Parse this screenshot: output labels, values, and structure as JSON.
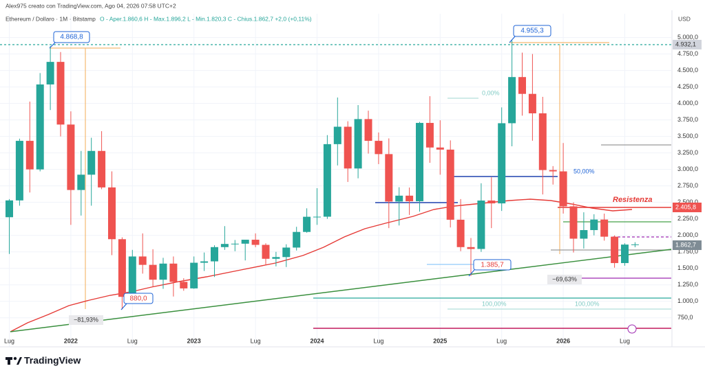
{
  "header": {
    "credit": "Alex975 creato con TradingView.com, Ago 04, 2026 07:58 UTC+2",
    "symbol": "Ethereum / Dollaro · 1M · Bitstamp",
    "ohlc": "O - Aper.1.860,6  H - Max.1.896,2  L - Min.1.820,3  C - Chius.1.862,7  +2,0 (+0,11%)",
    "currency": "USD"
  },
  "annotations": [
    "4.868,8",
    "4.955,3",
    "880,0",
    "1.385,7",
    "−81,93%",
    "−69,63%",
    "Resistenza",
    "50,00%",
    "0,00%",
    "100,00%",
    "100,00%"
  ],
  "price_labels": [
    "4.932,1",
    "2.405,8",
    "1.862,7"
  ],
  "brand": "TradingView",
  "chart_data": {
    "type": "candlestick",
    "up_color": "#26a69a",
    "down_color": "#ef5350",
    "grid": true,
    "categories": [
      "Lug",
      null,
      null,
      null,
      null,
      null,
      "2022",
      null,
      null,
      null,
      null,
      null,
      "Lug",
      null,
      null,
      null,
      null,
      null,
      "2023",
      null,
      null,
      null,
      null,
      null,
      "Lug",
      null,
      null,
      null,
      null,
      null,
      "2024",
      null,
      null,
      null,
      null,
      null,
      "Lug",
      null,
      null,
      null,
      null,
      null,
      "2025",
      null,
      null,
      null,
      null,
      null,
      "Lug",
      null,
      null,
      null,
      null,
      null,
      "2026",
      null,
      null,
      null,
      null,
      null,
      "Lug",
      null
    ],
    "open": [
      2275,
      2530,
      3433,
      3000,
      4288,
      4630,
      3680,
      2688,
      2920,
      3280,
      2727,
      1942,
      1068,
      1680,
      1553,
      1328,
      1572,
      1295,
      1196,
      1585,
      1606,
      1822,
      1870,
      1874,
      1934,
      1856,
      1645,
      1671,
      1815,
      2052,
      2282,
      2283,
      3383,
      3647,
      3014,
      3763,
      3433,
      3232,
      2513,
      2602,
      2517,
      3705,
      3332,
      3300,
      2237,
      1822,
      1794,
      2528,
      2485,
      3700,
      4400,
      4145,
      3850,
      2990,
      2970,
      2440,
      1950,
      2080,
      2240,
      1980,
      1580,
      1860.6
    ],
    "high": [
      2550,
      3466,
      4028,
      4460,
      4868.8,
      4780,
      3880,
      3280,
      3480,
      3580,
      2970,
      1970,
      1780,
      2030,
      1790,
      1660,
      1680,
      1350,
      1680,
      1740,
      1850,
      2140,
      1930,
      1930,
      2030,
      1880,
      1750,
      1865,
      2130,
      2410,
      2715,
      3520,
      4090,
      3730,
      3975,
      3890,
      3560,
      3470,
      2730,
      2725,
      3720,
      4110,
      3745,
      3440,
      2550,
      1960,
      2790,
      2880,
      3940,
      4955.3,
      4770,
      4750,
      4100,
      3050,
      3400,
      2500,
      2350,
      2320,
      2330,
      2000,
      1880,
      1896.2
    ],
    "low": [
      1718,
      2450,
      2650,
      2970,
      3900,
      3500,
      2160,
      2300,
      2450,
      2700,
      1700,
      880,
      1000,
      1420,
      1220,
      1190,
      1073,
      1160,
      1190,
      1460,
      1370,
      1780,
      1760,
      1620,
      1820,
      1550,
      1530,
      1520,
      1770,
      2040,
      2160,
      2250,
      3060,
      2810,
      2865,
      3240,
      3080,
      2110,
      2150,
      2310,
      2360,
      3100,
      2920,
      2120,
      1760,
      1385.7,
      1750,
      2110,
      2370,
      3350,
      3815,
      3435,
      2620,
      2770,
      2330,
      1740,
      1800,
      2000,
      1920,
      1510,
      1540,
      1820.3
    ],
    "close": [
      2530,
      3433,
      3000,
      4288,
      4630,
      3680,
      2688,
      2920,
      3280,
      2727,
      1942,
      1068,
      1680,
      1553,
      1328,
      1572,
      1295,
      1196,
      1585,
      1606,
      1822,
      1870,
      1874,
      1934,
      1856,
      1645,
      1671,
      1815,
      2052,
      2282,
      2283,
      3383,
      3647,
      3014,
      3763,
      3433,
      3232,
      2513,
      2602,
      2517,
      3705,
      3332,
      3300,
      2237,
      1822,
      1794,
      2528,
      2485,
      3700,
      4400,
      4145,
      3850,
      2990,
      2970,
      2440,
      1950,
      2080,
      2240,
      1980,
      1580,
      1860.6,
      1862.7
    ],
    "ylim": [
      310,
      5360
    ],
    "yticks": [
      {
        "value": 750,
        "label": "750,0"
      },
      {
        "value": 1000,
        "label": "1.000,0"
      },
      {
        "value": 1250,
        "label": "1.250,0"
      },
      {
        "value": 1500,
        "label": "1.500,0"
      },
      {
        "value": 1750,
        "label": "1.750,0"
      },
      {
        "value": 2000,
        "label": "2.000,0"
      },
      {
        "value": 2250,
        "label": "2.250,0"
      },
      {
        "value": 2500,
        "label": "2.500,0"
      },
      {
        "value": 2750,
        "label": "2.750,0"
      },
      {
        "value": 3000,
        "label": "3.000,0"
      },
      {
        "value": 3250,
        "label": "3.250,0"
      },
      {
        "value": 3500,
        "label": "3.500,0"
      },
      {
        "value": 3750,
        "label": "3.750,0"
      },
      {
        "value": 4000,
        "label": "4.000,0"
      },
      {
        "value": 4250,
        "label": "4.250,0"
      },
      {
        "value": 4500,
        "label": "4.500,0"
      },
      {
        "value": 4750,
        "label": "4.750,0"
      },
      {
        "value": 5000,
        "label": "5.000,0"
      }
    ]
  }
}
